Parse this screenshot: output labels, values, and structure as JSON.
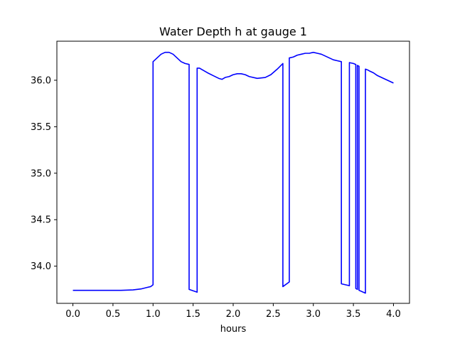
{
  "chart_data": {
    "type": "line",
    "title": "Water Depth h at gauge 1",
    "xlabel": "hours",
    "ylabel": "",
    "xlim": [
      -0.2,
      4.2
    ],
    "ylim": [
      33.6,
      36.42
    ],
    "xticks": [
      0.0,
      0.5,
      1.0,
      1.5,
      2.0,
      2.5,
      3.0,
      3.5,
      4.0
    ],
    "xtick_labels": [
      "0.0",
      "0.5",
      "1.0",
      "1.5",
      "2.0",
      "2.5",
      "3.0",
      "3.5",
      "4.0"
    ],
    "yticks": [
      34.0,
      34.5,
      35.0,
      35.5,
      36.0
    ],
    "ytick_labels": [
      "34.0",
      "34.5",
      "35.0",
      "35.5",
      "36.0"
    ],
    "grid": false,
    "series": [
      {
        "color": "#0000ff",
        "x": [
          0.0,
          0.2,
          0.4,
          0.6,
          0.75,
          0.85,
          0.92,
          0.97,
          1.0,
          1.0,
          1.05,
          1.1,
          1.15,
          1.2,
          1.25,
          1.3,
          1.35,
          1.4,
          1.45,
          1.45,
          1.55,
          1.55,
          1.58,
          1.62,
          1.68,
          1.75,
          1.82,
          1.86,
          1.9,
          1.95,
          2.0,
          2.05,
          2.1,
          2.15,
          2.2,
          2.3,
          2.4,
          2.47,
          2.55,
          2.62,
          2.62,
          2.7,
          2.7,
          2.75,
          2.8,
          2.85,
          2.9,
          2.95,
          3.0,
          3.05,
          3.1,
          3.15,
          3.2,
          3.25,
          3.3,
          3.35,
          3.35,
          3.45,
          3.45,
          3.5,
          3.53,
          3.53,
          3.55,
          3.55,
          3.57,
          3.57,
          3.65,
          3.65,
          3.68,
          3.7,
          3.75,
          3.8,
          3.85,
          3.9,
          3.95,
          4.0
        ],
        "y": [
          33.74,
          33.74,
          33.74,
          33.74,
          33.745,
          33.755,
          33.77,
          33.78,
          33.8,
          36.2,
          36.24,
          36.28,
          36.3,
          36.3,
          36.28,
          36.24,
          36.2,
          36.18,
          36.17,
          33.75,
          33.72,
          36.13,
          36.13,
          36.11,
          36.08,
          36.05,
          36.02,
          36.01,
          36.03,
          36.04,
          36.06,
          36.07,
          36.07,
          36.06,
          36.04,
          36.02,
          36.03,
          36.06,
          36.12,
          36.18,
          33.78,
          33.83,
          36.24,
          36.25,
          36.27,
          36.28,
          36.29,
          36.29,
          36.3,
          36.29,
          36.28,
          36.26,
          36.24,
          36.22,
          36.21,
          36.2,
          33.81,
          33.79,
          36.19,
          36.18,
          36.17,
          33.76,
          33.75,
          36.16,
          36.15,
          33.74,
          33.71,
          36.12,
          36.11,
          36.1,
          36.08,
          36.05,
          36.03,
          36.01,
          35.99,
          35.97
        ]
      }
    ]
  }
}
